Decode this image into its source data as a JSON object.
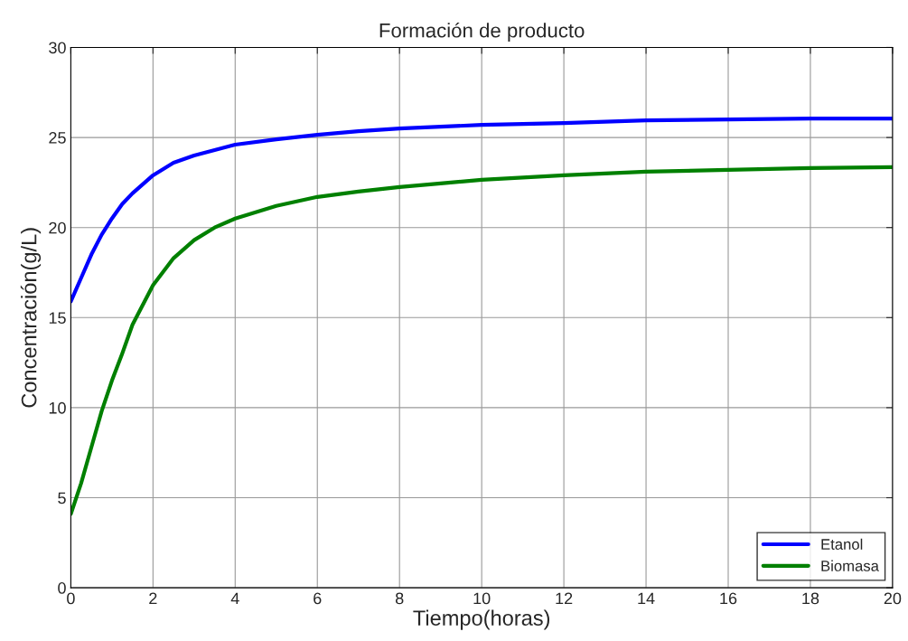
{
  "chart_data": {
    "type": "line",
    "title": "Formación de producto",
    "xlabel": "Tiempo(horas)",
    "ylabel": "Concentración(g/L)",
    "x": [
      0,
      0.25,
      0.5,
      0.75,
      1,
      1.25,
      1.5,
      2,
      2.5,
      3,
      3.5,
      4,
      5,
      6,
      7,
      8,
      9,
      10,
      12,
      14,
      16,
      18,
      20
    ],
    "series": [
      {
        "name": "Etanol",
        "color": "#0000ff",
        "values": [
          15.9,
          17.2,
          18.5,
          19.6,
          20.5,
          21.3,
          21.9,
          22.9,
          23.6,
          24.0,
          24.3,
          24.6,
          24.9,
          25.15,
          25.35,
          25.5,
          25.6,
          25.7,
          25.8,
          25.95,
          26.0,
          26.05,
          26.05
        ]
      },
      {
        "name": "Biomasa",
        "color": "#008000",
        "values": [
          4.1,
          5.8,
          7.8,
          9.8,
          11.5,
          13.0,
          14.6,
          16.8,
          18.3,
          19.3,
          20.0,
          20.5,
          21.2,
          21.7,
          22.0,
          22.25,
          22.45,
          22.65,
          22.9,
          23.1,
          23.2,
          23.3,
          23.35
        ]
      }
    ],
    "xlim": [
      0,
      20
    ],
    "xticks": [
      0,
      2,
      4,
      6,
      8,
      10,
      12,
      14,
      16,
      18,
      20
    ],
    "ylim": [
      0,
      30
    ],
    "yticks": [
      0,
      5,
      10,
      15,
      20,
      25,
      30
    ],
    "grid": true,
    "legend": "bottom right",
    "line_style": "solid"
  }
}
